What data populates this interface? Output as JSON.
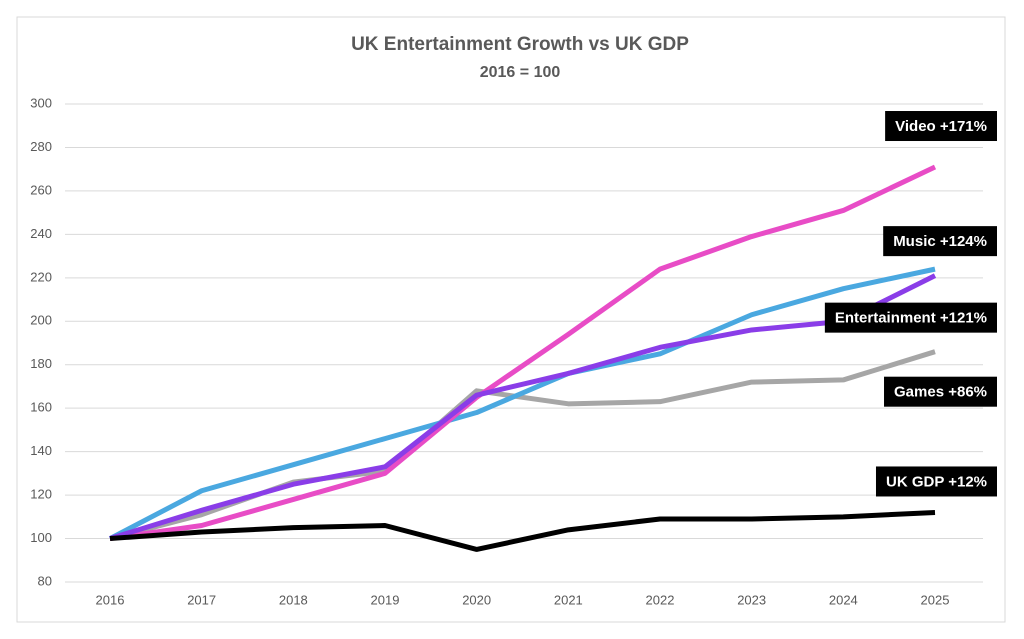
{
  "chart_data": {
    "type": "line",
    "title": "UK Entertainment Growth vs UK GDP",
    "subtitle": "2016 = 100",
    "categories": [
      "2016",
      "2017",
      "2018",
      "2019",
      "2020",
      "2021",
      "2022",
      "2023",
      "2024",
      "2025"
    ],
    "series": [
      {
        "name": "Games +86%",
        "color": "#a6a6a6",
        "values": [
          100,
          111,
          126,
          131,
          168,
          162,
          163,
          172,
          173,
          186
        ]
      },
      {
        "name": "Music +124%",
        "color": "#4aa8e0",
        "values": [
          100,
          122,
          134,
          146,
          158,
          176,
          185,
          203,
          215,
          224
        ]
      },
      {
        "name": "Video +171%",
        "color": "#e84cc6",
        "values": [
          100,
          106,
          118,
          130,
          165,
          194,
          224,
          239,
          251,
          271
        ]
      },
      {
        "name": "Entertainment +121%",
        "color": "#8a3de8",
        "values": [
          100,
          113,
          125,
          133,
          166,
          176,
          188,
          196,
          200,
          221
        ]
      },
      {
        "name": "UK GDP +12%",
        "color": "#000000",
        "values": [
          100,
          103,
          105,
          106,
          95,
          104,
          109,
          109,
          110,
          112
        ]
      }
    ],
    "ylim": [
      80,
      300
    ],
    "yticks": [
      80,
      100,
      120,
      140,
      160,
      180,
      200,
      220,
      240,
      260,
      280,
      300
    ],
    "grid": true
  }
}
